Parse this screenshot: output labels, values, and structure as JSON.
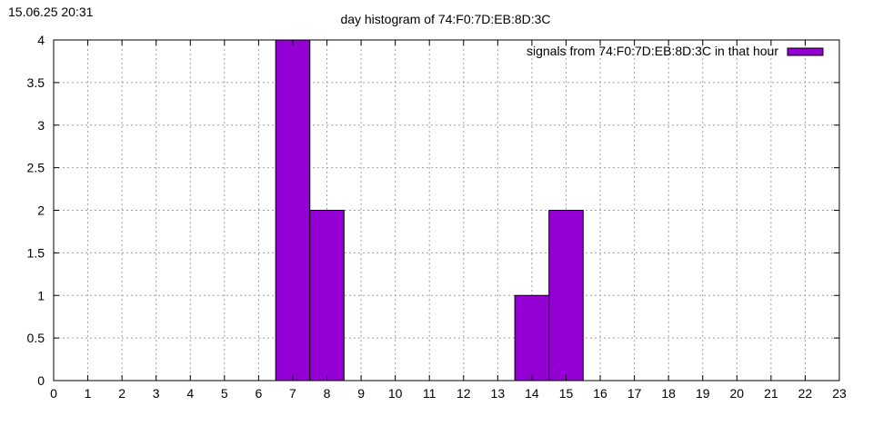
{
  "timestamp": "15.06.25 20:31",
  "chart_data": {
    "type": "bar",
    "title": "day histogram of 74:F0:7D:EB:8D:3C",
    "xlabel": "",
    "ylabel": "",
    "xlim": [
      0,
      23
    ],
    "ylim": [
      0,
      4
    ],
    "x_ticks": [
      "0",
      "1",
      "2",
      "3",
      "4",
      "5",
      "6",
      "7",
      "8",
      "9",
      "10",
      "11",
      "12",
      "13",
      "14",
      "15",
      "16",
      "17",
      "18",
      "19",
      "20",
      "21",
      "22",
      "23"
    ],
    "y_ticks": [
      "0",
      "0.5",
      "1",
      "1.5",
      "2",
      "2.5",
      "3",
      "3.5",
      "4"
    ],
    "grid": true,
    "legend_position": "top-right",
    "series": [
      {
        "name": "signals from 74:F0:7D:EB:8D:3C in that hour",
        "color": "#9400d3",
        "x": [
          7,
          8,
          14,
          15
        ],
        "values": [
          4,
          2,
          1,
          2
        ]
      }
    ]
  }
}
